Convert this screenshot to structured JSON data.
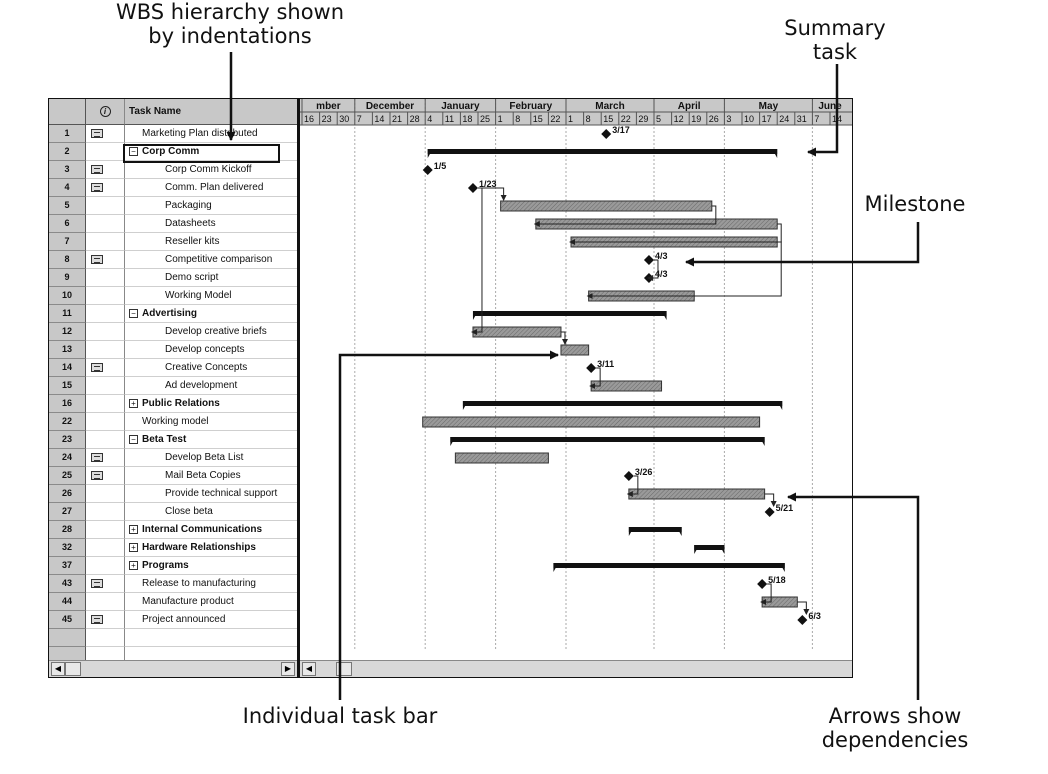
{
  "callouts": {
    "wbs": [
      "WBS hierarchy shown",
      "by indentations"
    ],
    "summary": [
      "Summary",
      "task"
    ],
    "milestone": "Milestone",
    "task_bar": "Individual task bar",
    "arrows": [
      "Arrows show",
      "dependencies"
    ]
  },
  "grid": {
    "header_info_icon": "info-icon",
    "header_task_name": "Task Name",
    "rows": [
      {
        "id": "1",
        "name": "Marketing Plan distributed",
        "level": 1,
        "bold": false,
        "note": true,
        "toggle": ""
      },
      {
        "id": "2",
        "name": "Corp Comm",
        "level": 0,
        "bold": true,
        "note": false,
        "toggle": "minus"
      },
      {
        "id": "3",
        "name": "Corp Comm Kickoff",
        "level": 2,
        "bold": false,
        "note": true,
        "toggle": ""
      },
      {
        "id": "4",
        "name": "Comm. Plan delivered",
        "level": 2,
        "bold": false,
        "note": true,
        "toggle": ""
      },
      {
        "id": "5",
        "name": "Packaging",
        "level": 2,
        "bold": false,
        "note": false,
        "toggle": ""
      },
      {
        "id": "6",
        "name": "Datasheets",
        "level": 2,
        "bold": false,
        "note": false,
        "toggle": ""
      },
      {
        "id": "7",
        "name": "Reseller kits",
        "level": 2,
        "bold": false,
        "note": false,
        "toggle": ""
      },
      {
        "id": "8",
        "name": "Competitive comparison",
        "level": 2,
        "bold": false,
        "note": true,
        "toggle": ""
      },
      {
        "id": "9",
        "name": "Demo script",
        "level": 2,
        "bold": false,
        "note": false,
        "toggle": ""
      },
      {
        "id": "10",
        "name": "Working Model",
        "level": 2,
        "bold": false,
        "note": false,
        "toggle": ""
      },
      {
        "id": "11",
        "name": "Advertising",
        "level": 0,
        "bold": true,
        "note": false,
        "toggle": "minus"
      },
      {
        "id": "12",
        "name": "Develop creative briefs",
        "level": 2,
        "bold": false,
        "note": false,
        "toggle": ""
      },
      {
        "id": "13",
        "name": "Develop concepts",
        "level": 2,
        "bold": false,
        "note": false,
        "toggle": ""
      },
      {
        "id": "14",
        "name": "Creative Concepts",
        "level": 2,
        "bold": false,
        "note": true,
        "toggle": ""
      },
      {
        "id": "15",
        "name": "Ad development",
        "level": 2,
        "bold": false,
        "note": false,
        "toggle": ""
      },
      {
        "id": "16",
        "name": "Public Relations",
        "level": 0,
        "bold": true,
        "note": false,
        "toggle": "plus"
      },
      {
        "id": "22",
        "name": "Working model",
        "level": 1,
        "bold": false,
        "note": false,
        "toggle": ""
      },
      {
        "id": "23",
        "name": "Beta Test",
        "level": 0,
        "bold": true,
        "note": false,
        "toggle": "minus"
      },
      {
        "id": "24",
        "name": "Develop Beta List",
        "level": 2,
        "bold": false,
        "note": true,
        "toggle": ""
      },
      {
        "id": "25",
        "name": "Mail Beta Copies",
        "level": 2,
        "bold": false,
        "note": true,
        "toggle": ""
      },
      {
        "id": "26",
        "name": "Provide technical support",
        "level": 2,
        "bold": false,
        "note": false,
        "toggle": ""
      },
      {
        "id": "27",
        "name": "Close beta",
        "level": 2,
        "bold": false,
        "note": false,
        "toggle": ""
      },
      {
        "id": "28",
        "name": "Internal Communications",
        "level": 0,
        "bold": true,
        "note": false,
        "toggle": "plus"
      },
      {
        "id": "32",
        "name": "Hardware Relationships",
        "level": 0,
        "bold": true,
        "note": false,
        "toggle": "plus"
      },
      {
        "id": "37",
        "name": "Programs",
        "level": 0,
        "bold": true,
        "note": false,
        "toggle": "plus"
      },
      {
        "id": "43",
        "name": "Release to manufacturing",
        "level": 1,
        "bold": false,
        "note": true,
        "toggle": ""
      },
      {
        "id": "44",
        "name": "Manufacture product",
        "level": 1,
        "bold": false,
        "note": false,
        "toggle": ""
      },
      {
        "id": "45",
        "name": "Project announced",
        "level": 1,
        "bold": false,
        "note": true,
        "toggle": ""
      }
    ]
  },
  "timescale": {
    "months": [
      "mber",
      "December",
      "January",
      "February",
      "March",
      "April",
      "May",
      "June"
    ],
    "weeks": [
      "16",
      "23",
      "30",
      "7",
      "14",
      "21",
      "28",
      "4",
      "11",
      "18",
      "25",
      "1",
      "8",
      "15",
      "22",
      "1",
      "8",
      "15",
      "22",
      "29",
      "5",
      "12",
      "19",
      "26",
      "3",
      "10",
      "17",
      "24",
      "31",
      "7",
      "14"
    ]
  },
  "chart_data": {
    "type": "gantt",
    "time_unit": "week",
    "tasks": [
      {
        "row": "1",
        "kind": "milestone",
        "date": "3/17",
        "label": "3/17"
      },
      {
        "row": "2",
        "kind": "summary",
        "start": "1/5",
        "end": "5/24"
      },
      {
        "row": "3",
        "kind": "milestone",
        "date": "1/5",
        "label": "1/5"
      },
      {
        "row": "4",
        "kind": "milestone",
        "date": "1/23",
        "label": "1/23"
      },
      {
        "row": "5",
        "kind": "task",
        "start": "2/3",
        "end": "4/28"
      },
      {
        "row": "6",
        "kind": "task",
        "start": "2/17",
        "end": "5/24"
      },
      {
        "row": "7",
        "kind": "task",
        "start": "3/3",
        "end": "5/24"
      },
      {
        "row": "8",
        "kind": "milestone",
        "date": "4/3",
        "label": "4/3"
      },
      {
        "row": "9",
        "kind": "milestone",
        "date": "4/3",
        "label": "4/3"
      },
      {
        "row": "10",
        "kind": "task",
        "start": "3/10",
        "end": "4/21"
      },
      {
        "row": "11",
        "kind": "summary",
        "start": "1/23",
        "end": "4/10"
      },
      {
        "row": "12",
        "kind": "task",
        "start": "1/23",
        "end": "2/27"
      },
      {
        "row": "13",
        "kind": "task",
        "start": "2/27",
        "end": "3/10"
      },
      {
        "row": "14",
        "kind": "milestone",
        "date": "3/11",
        "label": "3/11"
      },
      {
        "row": "15",
        "kind": "task",
        "start": "3/11",
        "end": "4/8"
      },
      {
        "row": "16",
        "kind": "summary",
        "start": "1/19",
        "end": "5/26"
      },
      {
        "row": "22",
        "kind": "task",
        "start": "1/3",
        "end": "5/17"
      },
      {
        "row": "23",
        "kind": "summary",
        "start": "1/14",
        "end": "5/19"
      },
      {
        "row": "24",
        "kind": "task",
        "start": "1/16",
        "end": "2/22"
      },
      {
        "row": "25",
        "kind": "milestone",
        "date": "3/26",
        "label": "3/26"
      },
      {
        "row": "26",
        "kind": "task",
        "start": "3/26",
        "end": "5/19"
      },
      {
        "row": "27",
        "kind": "milestone",
        "date": "5/21",
        "label": "5/21"
      },
      {
        "row": "28",
        "kind": "summary",
        "start": "3/26",
        "end": "4/16"
      },
      {
        "row": "32",
        "kind": "summary",
        "start": "4/21",
        "end": "5/3"
      },
      {
        "row": "37",
        "kind": "summary",
        "start": "2/24",
        "end": "5/27"
      },
      {
        "row": "43",
        "kind": "milestone",
        "date": "5/18",
        "label": "5/18"
      },
      {
        "row": "44",
        "kind": "task",
        "start": "5/18",
        "end": "6/1"
      },
      {
        "row": "45",
        "kind": "milestone",
        "date": "6/3",
        "label": "6/3"
      }
    ],
    "dependencies": [
      [
        "4",
        "5"
      ],
      [
        "4",
        "12"
      ],
      [
        "5",
        "6"
      ],
      [
        "6",
        "7"
      ],
      [
        "7",
        "10"
      ],
      [
        "8",
        "9"
      ],
      [
        "12",
        "13"
      ],
      [
        "14",
        "15"
      ],
      [
        "25",
        "26"
      ],
      [
        "26",
        "27"
      ],
      [
        "43",
        "44"
      ],
      [
        "44",
        "45"
      ]
    ]
  }
}
